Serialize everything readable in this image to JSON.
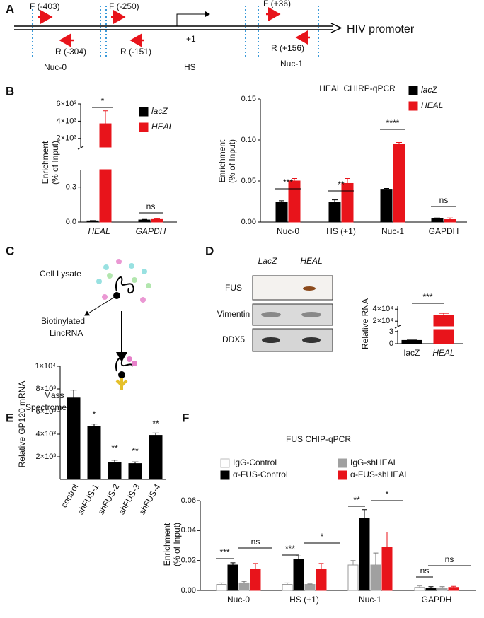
{
  "panel_labels": [
    "A",
    "B",
    "C",
    "D",
    "E",
    "F"
  ],
  "promoter": {
    "title": "HIV promoter",
    "primers": [
      "F (-403)",
      "R (-304)",
      "F (-250)",
      "R (-151)",
      "F (+36)",
      "R (+156)"
    ],
    "tss": "+1",
    "regions": [
      "Nuc-0",
      "HS",
      "Nuc-1"
    ]
  },
  "lysate_diagram": {
    "steps": [
      "Cell Lysate",
      "Biotinylated",
      "LincRNA",
      "Mass",
      "Spectrometry"
    ]
  },
  "western_blot": {
    "columns": [
      "LacZ",
      "HEAL"
    ],
    "rows": [
      "FUS",
      "Vimentin",
      "DDX5"
    ]
  },
  "chart_data": [
    {
      "type": "bar",
      "ylabel": [
        "Enrichment",
        "(% of Input)"
      ],
      "categories": [
        "HEAL",
        "GAPDH"
      ],
      "series": [
        {
          "name": "lacZ",
          "color": "#000000",
          "values": [
            0.01,
            0.018
          ],
          "errors": [
            0.003,
            0.005
          ]
        },
        {
          "name": "HEAL",
          "color": "#e8141b",
          "values": [
            3700,
            0.022
          ],
          "errors": [
            1500,
            0.006
          ]
        }
      ],
      "y_segments": [
        {
          "ylim": [
            0,
            0.45
          ],
          "yticks": [
            {
              "value": 0,
              "label": "0.0"
            },
            0.3
          ]
        },
        {
          "ylim": [
            1000,
            6000
          ],
          "yticks": [
            {
              "value": 2000,
              "label": "2×10³"
            },
            {
              "value": 4000,
              "label": "4×10³"
            },
            {
              "value": 6000,
              "label": "6×10³"
            }
          ]
        }
      ],
      "annotations": [
        "*",
        "ns"
      ]
    },
    {
      "type": "bar",
      "title": "HEAL CHIRP-qPCR",
      "ylabel": [
        "Enrichment",
        "(% of Input)"
      ],
      "categories": [
        "Nuc-0",
        "HS (+1)",
        "Nuc-1",
        "GAPDH"
      ],
      "series": [
        {
          "name": "lacZ",
          "color": "#000000",
          "values": [
            0.024,
            0.024,
            0.04,
            0.004
          ],
          "errors": [
            0.002,
            0.003,
            0.001,
            0.001
          ]
        },
        {
          "name": "HEAL",
          "color": "#e8141b",
          "values": [
            0.05,
            0.047,
            0.095,
            0.003
          ],
          "errors": [
            0.003,
            0.006,
            0.002,
            0.002
          ]
        }
      ],
      "ylim": [
        0,
        0.15
      ],
      "yticks": [
        {
          "value": 0,
          "label": "0.00"
        },
        {
          "value": 0.05,
          "label": "0.05"
        },
        {
          "value": 0.1,
          "label": "0.10"
        },
        {
          "value": 0.15,
          "label": "0.15"
        }
      ],
      "annotations": [
        "***",
        "**",
        "****",
        "ns"
      ]
    },
    {
      "type": "bar",
      "ylabel": [
        "Relative RNA"
      ],
      "categories": [
        "lacZ",
        "HEAL"
      ],
      "values": [
        0.8,
        30000
      ],
      "errors": [
        0.1,
        3000
      ],
      "colors": [
        "#000000",
        "#e8141b"
      ],
      "y_segments": [
        {
          "ylim": [
            0,
            3.5
          ],
          "yticks": [
            0,
            3
          ]
        },
        {
          "ylim": [
            12000,
            45000
          ],
          "yticks": [
            {
              "value": 20000,
              "label": "2×10⁴"
            },
            {
              "value": 40000,
              "label": "4×10⁴"
            }
          ]
        }
      ],
      "annotations": [
        "***"
      ]
    },
    {
      "type": "bar",
      "ylabel": [
        "Relative GP120 mRNA"
      ],
      "categories": [
        "control",
        "shFUS-1",
        "shFUS-2",
        "shFUS-3",
        "shFUS-4"
      ],
      "values": [
        7200,
        4700,
        1500,
        1400,
        3900
      ],
      "errors": [
        700,
        200,
        200,
        150,
        200
      ],
      "color": "#000000",
      "ylim": [
        0,
        10000
      ],
      "yticks": [
        {
          "value": 2000,
          "label": "2×10³"
        },
        {
          "value": 4000,
          "label": "4×10³"
        },
        {
          "value": 6000,
          "label": "6×10³"
        },
        {
          "value": 8000,
          "label": "8×10³"
        },
        {
          "value": 10000,
          "label": "1×10⁴"
        }
      ],
      "annotations": [
        "*",
        "**",
        "**",
        "**"
      ]
    },
    {
      "type": "bar",
      "title": "FUS CHIP-qPCR",
      "ylabel": [
        "Enrichment",
        "(% of Input)"
      ],
      "categories": [
        "Nuc-0",
        "HS (+1)",
        "Nuc-1",
        "GAPDH"
      ],
      "series": [
        {
          "name": "IgG-Control",
          "color": "#ffffff",
          "values": [
            0.004,
            0.004,
            0.017,
            0.002
          ],
          "errors": [
            0.001,
            0.001,
            0.003,
            0.001
          ]
        },
        {
          "name": "α-FUS-Control",
          "color": "#000000",
          "values": [
            0.017,
            0.021,
            0.048,
            0.0015
          ],
          "errors": [
            0.0015,
            0.002,
            0.006,
            0.001
          ]
        },
        {
          "name": "IgG-shHEAL",
          "color": "#a0a0a0",
          "values": [
            0.005,
            0.004,
            0.017,
            0.0015
          ],
          "errors": [
            0.001,
            0.0003,
            0.008,
            0.001
          ]
        },
        {
          "name": "α-FUS-shHEAL",
          "color": "#e8141b",
          "values": [
            0.014,
            0.014,
            0.029,
            0.002
          ],
          "errors": [
            0.004,
            0.004,
            0.01,
            0.0007
          ]
        }
      ],
      "ylim": [
        0,
        0.06
      ],
      "yticks": [
        {
          "value": 0,
          "label": "0.00"
        },
        {
          "value": 0.02,
          "label": "0.02"
        },
        {
          "value": 0.04,
          "label": "0.04"
        },
        {
          "value": 0.06,
          "label": "0.06"
        }
      ],
      "annotations": [
        "***",
        "ns",
        "***",
        "*",
        "**",
        "*",
        "ns",
        "ns"
      ]
    }
  ]
}
